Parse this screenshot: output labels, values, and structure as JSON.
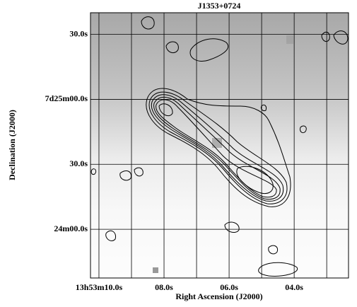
{
  "chart_data": {
    "type": "image",
    "title": "J1353+0724",
    "x_label": "Right Ascension (J2000)",
    "y_label": "Declination (J2000)",
    "xlim": [
      10.26,
      2.33
    ],
    "ylim": [
      -22.5,
      100
    ],
    "xticks": [
      {
        "value": 10,
        "label": "13h53m10.0s"
      },
      {
        "value": 8,
        "label": "08.0s"
      },
      {
        "value": 6,
        "label": "06.0s"
      },
      {
        "value": 4,
        "label": "04.0s"
      }
    ],
    "xgrid": [
      9,
      7,
      5,
      3
    ],
    "yticks": [
      {
        "value": 90,
        "label": "30.0s"
      },
      {
        "value": 60,
        "label": "7d25m00.0s"
      },
      {
        "value": 30,
        "label": "30.0s"
      },
      {
        "value": 0,
        "label": "24m00.0s"
      }
    ],
    "grid": true
  }
}
